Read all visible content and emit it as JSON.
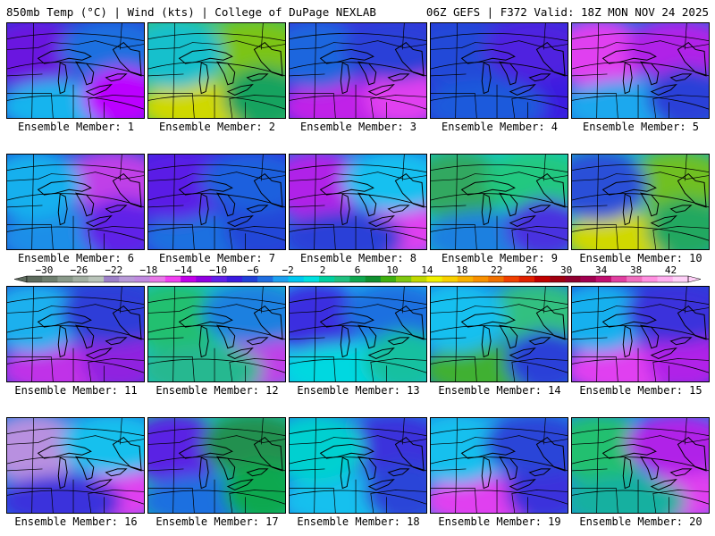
{
  "header": {
    "left": "850mb Temp (°C) | Wind (kts) | College of DuPage NEXLAB",
    "right": "06Z GEFS | F372 Valid: 18Z MON NOV 24 2025"
  },
  "colorbar": {
    "tick_labels": [
      "-30",
      "-26",
      "-22",
      "-18",
      "-14",
      "-10",
      "-6",
      "-2",
      "2",
      "6",
      "10",
      "14",
      "18",
      "22",
      "26",
      "30",
      "34",
      "38",
      "42"
    ],
    "range": [
      -32,
      44
    ],
    "step_c": 2,
    "colors": [
      "#5d6b5d",
      "#6f7f6f",
      "#8a9a8a",
      "#a3b0a3",
      "#b9c4b9",
      "#9d80c8",
      "#b89ad8",
      "#c08be0",
      "#e878e8",
      "#f040f0",
      "#c000e8",
      "#9000e0",
      "#6020e8",
      "#3b1be0",
      "#2040d8",
      "#1f6ee0",
      "#1ea0f0",
      "#00c8f0",
      "#00e0e0",
      "#00d0a0",
      "#20c080",
      "#10a850",
      "#109030",
      "#40b010",
      "#80c810",
      "#c0d800",
      "#f0f000",
      "#f8d000",
      "#f8b000",
      "#f89000",
      "#f07000",
      "#f04000",
      "#e02000",
      "#c00000",
      "#a00010",
      "#900030",
      "#a00050",
      "#c01070",
      "#e040a0",
      "#f070c0",
      "#ff90e0",
      "#ffb0f0",
      "#ffd0f8"
    ]
  },
  "members": [
    {
      "label": "Ensemble Member: 1",
      "fill": "#2a3cd6",
      "blobs": [
        {
          "c": "#6a18e0"
        },
        {
          "c": "#1d6fe0"
        },
        {
          "c": "#14b4ee"
        },
        {
          "c": "#b0f"
        }
      ]
    },
    {
      "label": "Ensemble Member: 2",
      "fill": "#3cc076",
      "blobs": [
        {
          "c": "#7cc418"
        },
        {
          "c": "#cfd800"
        },
        {
          "c": "#16a35e"
        },
        {
          "c": "#18c0cc"
        }
      ]
    },
    {
      "label": "Ensemble Member: 3",
      "fill": "#3a30dc",
      "blobs": [
        {
          "c": "#c020e8"
        },
        {
          "c": "#e040f0"
        },
        {
          "c": "#1e66de"
        },
        {
          "c": "#2a40d8"
        }
      ]
    },
    {
      "label": "Ensemble Member: 4",
      "fill": "#2d36d8",
      "blobs": [
        {
          "c": "#3b1be0"
        },
        {
          "c": "#2048d8"
        },
        {
          "c": "#5020e0"
        },
        {
          "c": "#1f5adc"
        }
      ]
    },
    {
      "label": "Ensemble Member: 5",
      "fill": "#1f6ee0",
      "blobs": [
        {
          "c": "#e040f0"
        },
        {
          "c": "#b020e8"
        },
        {
          "c": "#1aa8ee"
        },
        {
          "c": "#2a40d8"
        }
      ]
    },
    {
      "label": "Ensemble Member: 6",
      "fill": "#2050d8",
      "blobs": [
        {
          "c": "#c040e8"
        },
        {
          "c": "#1e8ee8"
        },
        {
          "c": "#6020e8"
        },
        {
          "c": "#14b0ee"
        }
      ]
    },
    {
      "label": "Ensemble Member: 7",
      "fill": "#3b2ae0",
      "blobs": [
        {
          "c": "#1e70e0"
        },
        {
          "c": "#2446d8"
        },
        {
          "c": "#5a1ee6"
        },
        {
          "c": "#1a60de"
        }
      ]
    },
    {
      "label": "Ensemble Member: 8",
      "fill": "#1f78e2",
      "blobs": [
        {
          "c": "#e040f0"
        },
        {
          "c": "#b020e8"
        },
        {
          "c": "#14c0f0"
        },
        {
          "c": "#2a40d8"
        }
      ]
    },
    {
      "label": "Ensemble Member: 9",
      "fill": "#10c8c8",
      "blobs": [
        {
          "c": "#30a860"
        },
        {
          "c": "#20c880"
        },
        {
          "c": "#1e80e0"
        },
        {
          "c": "#4a30e0"
        }
      ]
    },
    {
      "label": "Ensemble Member: 10",
      "fill": "#18b0c8",
      "blobs": [
        {
          "c": "#70c020"
        },
        {
          "c": "#d0d800"
        },
        {
          "c": "#20a860"
        },
        {
          "c": "#2a50d8"
        }
      ]
    },
    {
      "label": "Ensemble Member: 11",
      "fill": "#2450d8",
      "blobs": [
        {
          "c": "#c030e8"
        },
        {
          "c": "#9020e0"
        },
        {
          "c": "#1ab0ee"
        },
        {
          "c": "#2e3cd8"
        }
      ]
    },
    {
      "label": "Ensemble Member: 12",
      "fill": "#16c0c8",
      "blobs": [
        {
          "c": "#c040e8"
        },
        {
          "c": "#20c070"
        },
        {
          "c": "#1e80e0"
        },
        {
          "c": "#28b890"
        }
      ]
    },
    {
      "label": "Ensemble Member: 13",
      "fill": "#18b4ee",
      "blobs": [
        {
          "c": "#3a2ee0"
        },
        {
          "c": "#1e70e0"
        },
        {
          "c": "#00d8e0"
        },
        {
          "c": "#18c0a0"
        }
      ]
    },
    {
      "label": "Ensemble Member: 14",
      "fill": "#1a80e4",
      "blobs": [
        {
          "c": "#30c080"
        },
        {
          "c": "#40b030"
        },
        {
          "c": "#2a40d8"
        },
        {
          "c": "#14c0f0"
        }
      ]
    },
    {
      "label": "Ensemble Member: 15",
      "fill": "#2244d8",
      "blobs": [
        {
          "c": "#e040f0"
        },
        {
          "c": "#b020e8"
        },
        {
          "c": "#14b0ee"
        },
        {
          "c": "#3a30dc"
        }
      ]
    },
    {
      "label": "Ensemble Member: 16",
      "fill": "#1e80e2",
      "blobs": [
        {
          "c": "#e040f0"
        },
        {
          "c": "#b890e0"
        },
        {
          "c": "#14c0ee"
        },
        {
          "c": "#3a30dc"
        }
      ]
    },
    {
      "label": "Ensemble Member: 17",
      "fill": "#18c0a8",
      "blobs": [
        {
          "c": "#5a20e4"
        },
        {
          "c": "#209050"
        },
        {
          "c": "#1e70e0"
        },
        {
          "c": "#10a850"
        }
      ]
    },
    {
      "label": "Ensemble Member: 18",
      "fill": "#1e80e2",
      "blobs": [
        {
          "c": "#3a30dc"
        },
        {
          "c": "#14c0ee"
        },
        {
          "c": "#2a44d8"
        },
        {
          "c": "#00d0d0"
        }
      ]
    },
    {
      "label": "Ensemble Member: 19",
      "fill": "#1e90e6",
      "blobs": [
        {
          "c": "#e040f0"
        },
        {
          "c": "#3a30dc"
        },
        {
          "c": "#14c0ee"
        },
        {
          "c": "#2a44d8"
        }
      ]
    },
    {
      "label": "Ensemble Member: 20",
      "fill": "#1a90e6",
      "blobs": [
        {
          "c": "#e040f0"
        },
        {
          "c": "#20c070"
        },
        {
          "c": "#b020e8"
        },
        {
          "c": "#18b0a0"
        }
      ]
    }
  ]
}
